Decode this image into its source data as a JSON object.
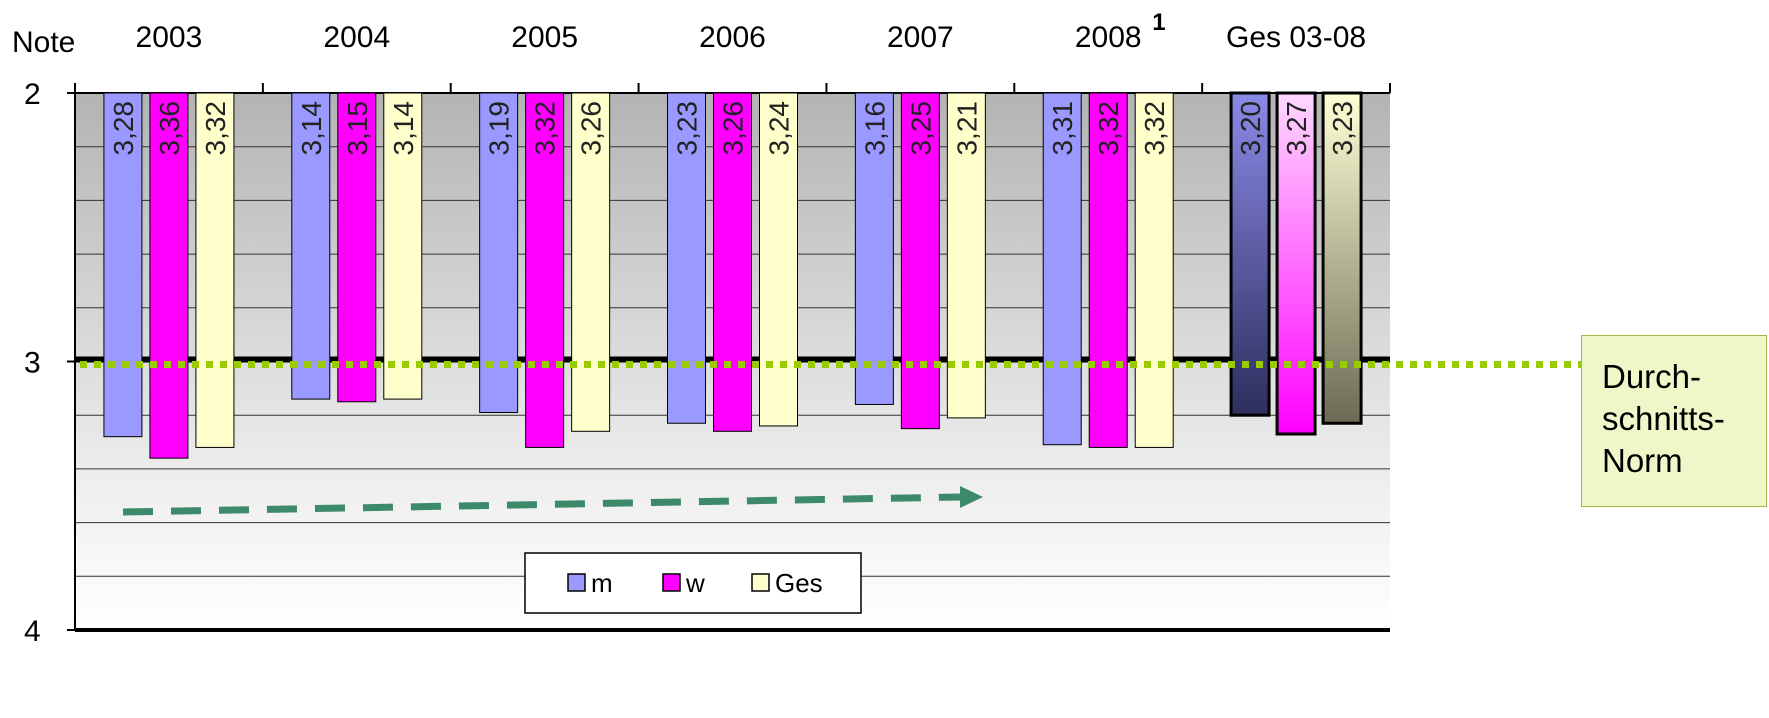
{
  "chart_data": {
    "type": "bar",
    "y_axis_title": "Note",
    "y_ticks": [
      "2",
      "3",
      "4"
    ],
    "ylim": [
      2,
      4
    ],
    "y_inverted": true,
    "categories": [
      "2003",
      "2004",
      "2005",
      "2006",
      "2007",
      "2008",
      "Ges 03-08"
    ],
    "category_superscripts": [
      "",
      "",
      "",
      "",
      "",
      "1",
      ""
    ],
    "series": [
      {
        "name": "m",
        "color": "#9999ff",
        "values": [
          3.28,
          3.14,
          3.19,
          3.23,
          3.16,
          3.31,
          3.2
        ]
      },
      {
        "name": "w",
        "color": "#ff00ff",
        "values": [
          3.36,
          3.15,
          3.32,
          3.26,
          3.25,
          3.32,
          3.27
        ]
      },
      {
        "name": "Ges",
        "color": "#ffffcc",
        "values": [
          3.32,
          3.14,
          3.26,
          3.24,
          3.21,
          3.32,
          3.23
        ]
      }
    ],
    "value_labels": [
      [
        "3,28",
        "3,36",
        "3,32"
      ],
      [
        "3,14",
        "3,15",
        "3,14"
      ],
      [
        "3,19",
        "3,32",
        "3,26"
      ],
      [
        "3,23",
        "3,26",
        "3,24"
      ],
      [
        "3,16",
        "3,25",
        "3,21"
      ],
      [
        "3,31",
        "3,32",
        "3,32"
      ],
      [
        "3,20",
        "3,27",
        "3,23"
      ]
    ],
    "reference_line": {
      "value": 3,
      "label_lines": [
        "Durch-",
        "schnitts-",
        "Norm"
      ],
      "color": "#99cc00"
    },
    "legend_position": "bottom-center",
    "grid": true
  }
}
